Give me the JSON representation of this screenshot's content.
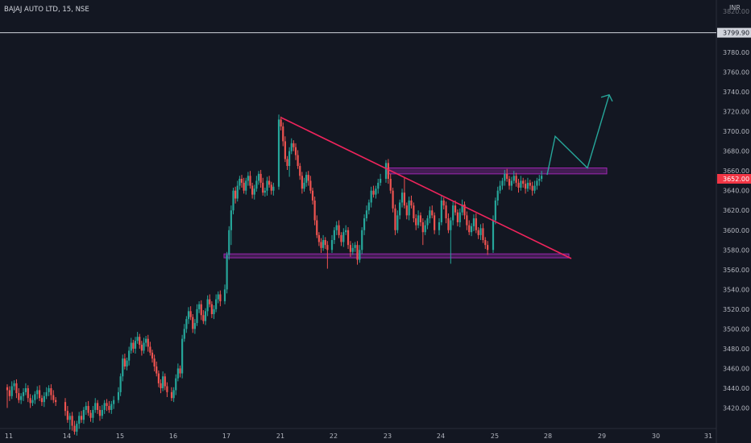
{
  "header": {
    "title": "BAJAJ AUTO LTD, 15, NSE",
    "currency": "INR",
    "top_price_label": "3820.00"
  },
  "colors": {
    "background": "#131722",
    "up": "#26a69a",
    "down": "#ef5350",
    "trendline": "#f0245c",
    "zone": "#9c27b0",
    "forecast": "#26a69a",
    "hline": "#d1d4dc"
  },
  "chart_data": {
    "type": "candlestick",
    "title": "BAJAJ AUTO LTD, 15, NSE",
    "currency": "INR",
    "x_labels": [
      "11",
      "14",
      "15",
      "16",
      "17",
      "21",
      "22",
      "23",
      "24",
      "25",
      "28",
      "29",
      "30",
      "31"
    ],
    "y_ticks": [
      "3420.00",
      "3440.00",
      "3460.00",
      "3480.00",
      "3500.00",
      "3520.00",
      "3540.00",
      "3560.00",
      "3580.00",
      "3600.00",
      "3620.00",
      "3640.00",
      "3660.00",
      "3680.00",
      "3700.00",
      "3720.00",
      "3740.00",
      "3760.00",
      "3780.00"
    ],
    "ylim": [
      3410,
      3830
    ],
    "horizontal_line": {
      "value": 3799.9,
      "label": "3799.90"
    },
    "last_price": {
      "value": 3652.0,
      "label": "3652.00"
    },
    "support_zone": {
      "low": 3572,
      "high": 3576
    },
    "resistance_zone": {
      "low": 3657,
      "high": 3663
    },
    "descending_trendline": [
      {
        "day": "21",
        "price": 3716
      },
      {
        "day": "28 (late)",
        "price": 3573
      }
    ],
    "forecast_path": [
      3656,
      3695,
      3663,
      3737
    ],
    "closes_15min": [
      3438,
      3432,
      3442,
      3445,
      3435,
      3428,
      3432,
      3436,
      3440,
      3430,
      3425,
      3428,
      3434,
      3438,
      3430,
      3426,
      3432,
      3436,
      3440,
      3433,
      3428,
      3426,
      3417,
      3408,
      3412,
      3402,
      3396,
      3404,
      3412,
      3408,
      3418,
      3422,
      3415,
      3410,
      3418,
      3425,
      3418,
      3412,
      3418,
      3425,
      3422,
      3418,
      3424,
      3428,
      3436,
      3452,
      3470,
      3462,
      3468,
      3478,
      3486,
      3480,
      3488,
      3492,
      3484,
      3478,
      3486,
      3490,
      3482,
      3476,
      3470,
      3462,
      3455,
      3445,
      3440,
      3452,
      3442,
      3436,
      3430,
      3438,
      3450,
      3460,
      3455,
      3490,
      3500,
      3510,
      3518,
      3512,
      3500,
      3506,
      3520,
      3525,
      3514,
      3508,
      3518,
      3530,
      3525,
      3515,
      3520,
      3530,
      3535,
      3528,
      3540,
      3575,
      3600,
      3620,
      3640,
      3632,
      3645,
      3652,
      3648,
      3640,
      3650,
      3655,
      3645,
      3636,
      3642,
      3650,
      3657,
      3648,
      3638,
      3640,
      3650,
      3646,
      3640,
      3644,
      3712,
      3705,
      3690,
      3672,
      3665,
      3680,
      3688,
      3684,
      3676,
      3665,
      3655,
      3642,
      3648,
      3656,
      3650,
      3640,
      3630,
      3610,
      3595,
      3588,
      3582,
      3590,
      3585,
      3580,
      3590,
      3600,
      3605,
      3595,
      3588,
      3598,
      3600,
      3585,
      3578,
      3582,
      3585,
      3570,
      3580,
      3600,
      3612,
      3620,
      3628,
      3640,
      3636,
      3642,
      3648,
      3652,
      3668,
      3652,
      3640,
      3622,
      3600,
      3615,
      3628,
      3638,
      3625,
      3615,
      3630,
      3625,
      3612,
      3605,
      3615,
      3608,
      3598,
      3605,
      3612,
      3620,
      3615,
      3600,
      3608,
      3630,
      3625,
      3612,
      3600,
      3610,
      3625,
      3618,
      3608,
      3618,
      3626,
      3615,
      3605,
      3598,
      3604,
      3612,
      3600,
      3595,
      3602,
      3590,
      3585,
      3580,
      3610,
      3630,
      3640,
      3645,
      3650,
      3657,
      3652,
      3645,
      3650,
      3655,
      3648,
      3643,
      3650,
      3647,
      3642,
      3648,
      3645,
      3640,
      3645,
      3650,
      3652,
      3655
    ]
  }
}
